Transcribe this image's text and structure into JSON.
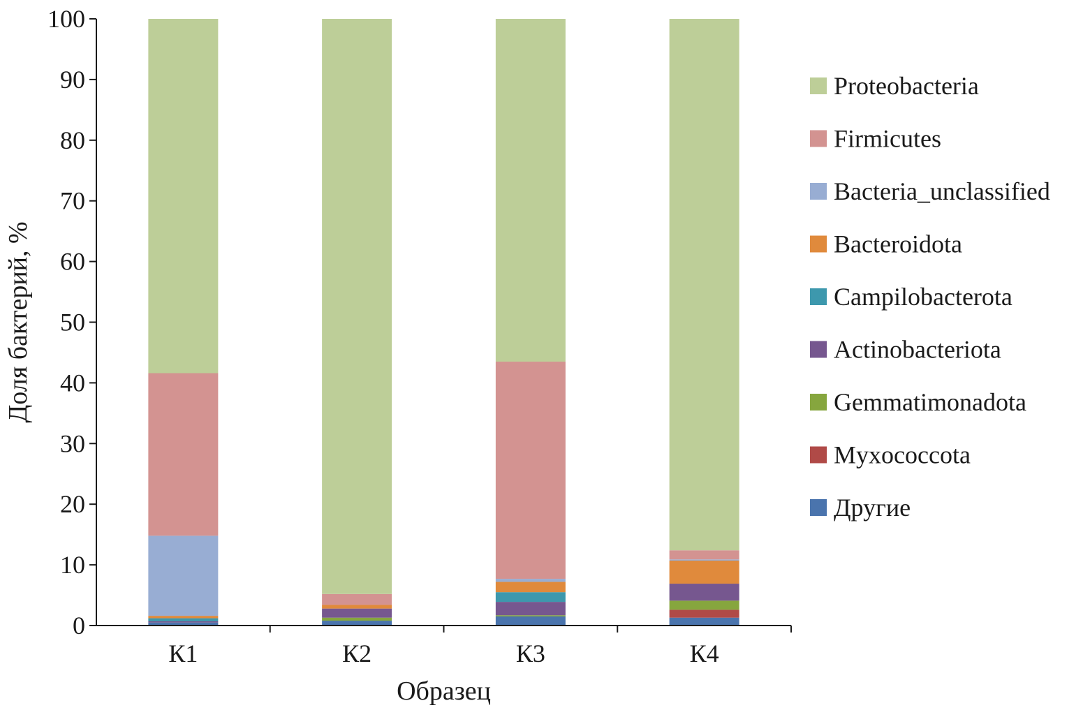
{
  "chart_data": {
    "type": "bar",
    "stacked": true,
    "xlabel": "Образец",
    "ylabel": "Доля бактерий, %",
    "ylim": [
      0,
      100
    ],
    "yticks": [
      0,
      10,
      20,
      30,
      40,
      50,
      60,
      70,
      80,
      90,
      100
    ],
    "grid": false,
    "legend_position": "right",
    "categories": [
      "К1",
      "К2",
      "К3",
      "К4"
    ],
    "series": [
      {
        "name": "Другие",
        "color": "#4a74ad",
        "values": [
          0.5,
          0.8,
          1.5,
          1.3
        ]
      },
      {
        "name": "Myxococcota",
        "color": "#b04a47",
        "values": [
          0.0,
          0.0,
          0.0,
          1.3
        ]
      },
      {
        "name": "Gemmatimonadota",
        "color": "#86a63e",
        "values": [
          0.0,
          0.5,
          0.2,
          1.5
        ]
      },
      {
        "name": "Actinobacteriota",
        "color": "#76578f",
        "values": [
          0.2,
          1.5,
          2.2,
          2.8
        ]
      },
      {
        "name": "Campilobacterota",
        "color": "#3d98ad",
        "values": [
          0.5,
          0.0,
          1.6,
          0.0
        ]
      },
      {
        "name": "Bacteroidota",
        "color": "#e08a3c",
        "values": [
          0.4,
          0.6,
          1.7,
          3.8
        ]
      },
      {
        "name": "Bacteria_unclassified",
        "color": "#98add3",
        "values": [
          13.2,
          0.0,
          0.5,
          0.2
        ]
      },
      {
        "name": "Firmicutes",
        "color": "#d39391",
        "values": [
          26.8,
          1.8,
          35.8,
          1.5
        ]
      },
      {
        "name": "Proteobacteria",
        "color": "#bdce98",
        "values": [
          58.4,
          94.8,
          56.5,
          87.6
        ]
      }
    ]
  }
}
